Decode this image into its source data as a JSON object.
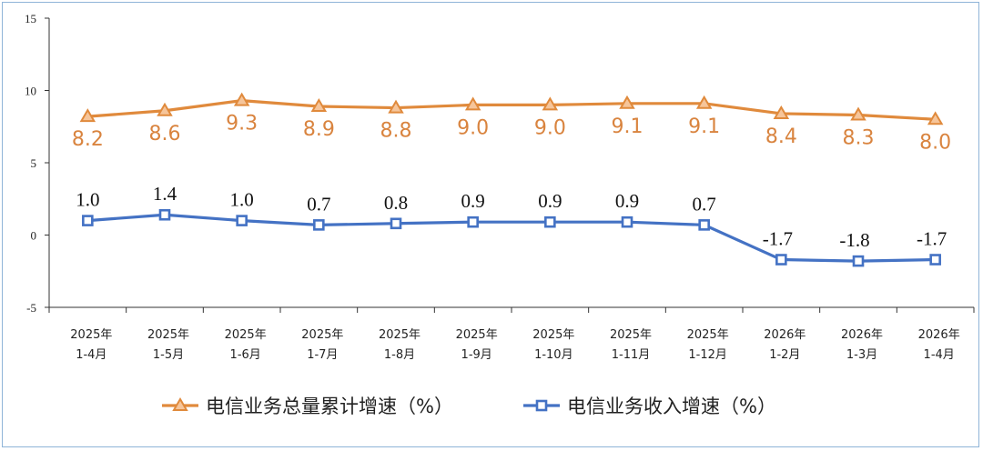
{
  "chart_data": {
    "type": "line",
    "categories": [
      [
        "2025年",
        "1-4月"
      ],
      [
        "2025年",
        "1-5月"
      ],
      [
        "2025年",
        "1-6月"
      ],
      [
        "2025年",
        "1-7月"
      ],
      [
        "2025年",
        "1-8月"
      ],
      [
        "2025年",
        "1-9月"
      ],
      [
        "2025年",
        "1-10月"
      ],
      [
        "2025年",
        "1-11月"
      ],
      [
        "2025年",
        "1-12月"
      ],
      [
        "2026年",
        "1-2月"
      ],
      [
        "2026年",
        "1-3月"
      ],
      [
        "2026年",
        "1-4月"
      ]
    ],
    "ylim": [
      -5,
      15
    ],
    "yticks": [
      "15",
      "10",
      "5",
      "0",
      "-5"
    ],
    "ytick_values": [
      15,
      10,
      5,
      0,
      -5
    ],
    "grid": false,
    "legend_position": "bottom",
    "series": [
      {
        "name": "电信业务总量累计增速（%）",
        "values": [
          8.2,
          8.6,
          9.3,
          8.9,
          8.8,
          9.0,
          9.0,
          9.1,
          9.1,
          8.4,
          8.3,
          8.0
        ],
        "labels": [
          "8.2",
          "8.6",
          "9.3",
          "8.9",
          "8.8",
          "9.0",
          "9.0",
          "9.1",
          "9.1",
          "8.4",
          "8.3",
          "8.0"
        ],
        "color": "#e08a3c",
        "marker": "triangle"
      },
      {
        "name": "电信业务收入增速（%）",
        "values": [
          1.0,
          1.4,
          1.0,
          0.7,
          0.8,
          0.9,
          0.9,
          0.9,
          0.7,
          -1.7,
          -1.8,
          -1.7
        ],
        "labels": [
          "1.0",
          "1.4",
          "1.0",
          "0.7",
          "0.8",
          "0.9",
          "0.9",
          "0.9",
          "0.7",
          "-1.7",
          "-1.8",
          "-1.7"
        ],
        "color": "#4472c4",
        "marker": "square"
      }
    ]
  }
}
